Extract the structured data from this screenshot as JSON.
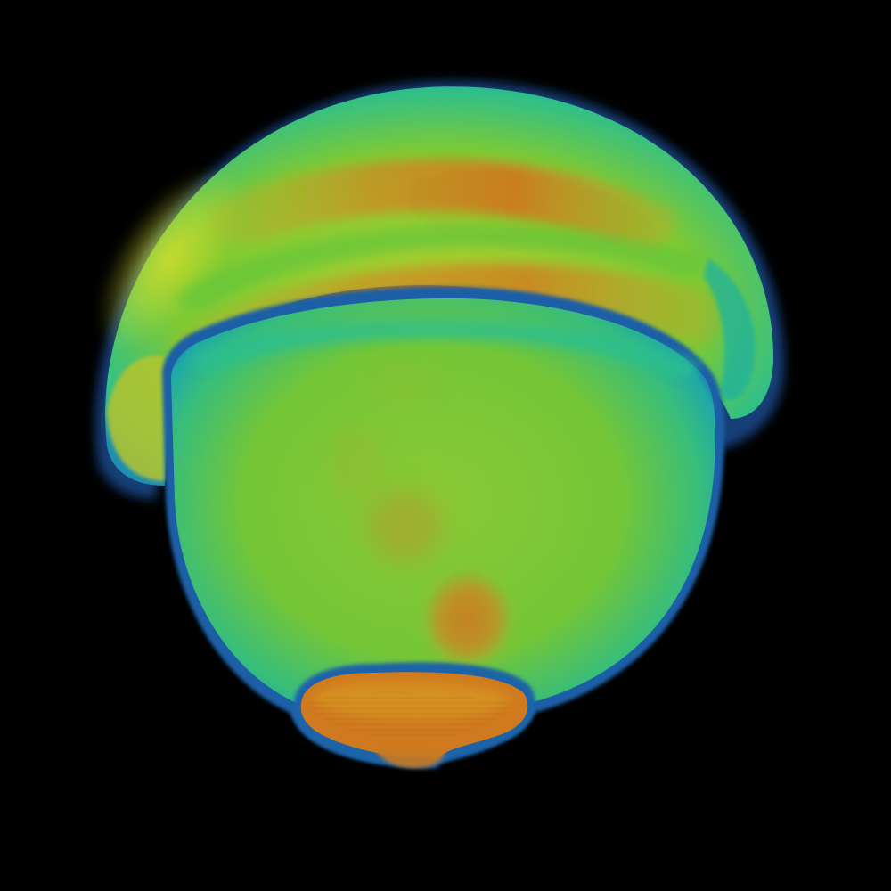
{
  "scene": {
    "background": "#000000",
    "colormap": {
      "edge": "#1a5fa8",
      "rim": "#20b5a0",
      "low": "#2fc08a",
      "mid": "#6cc832",
      "high": "#c4d12c",
      "peak": "#d4781e"
    }
  }
}
